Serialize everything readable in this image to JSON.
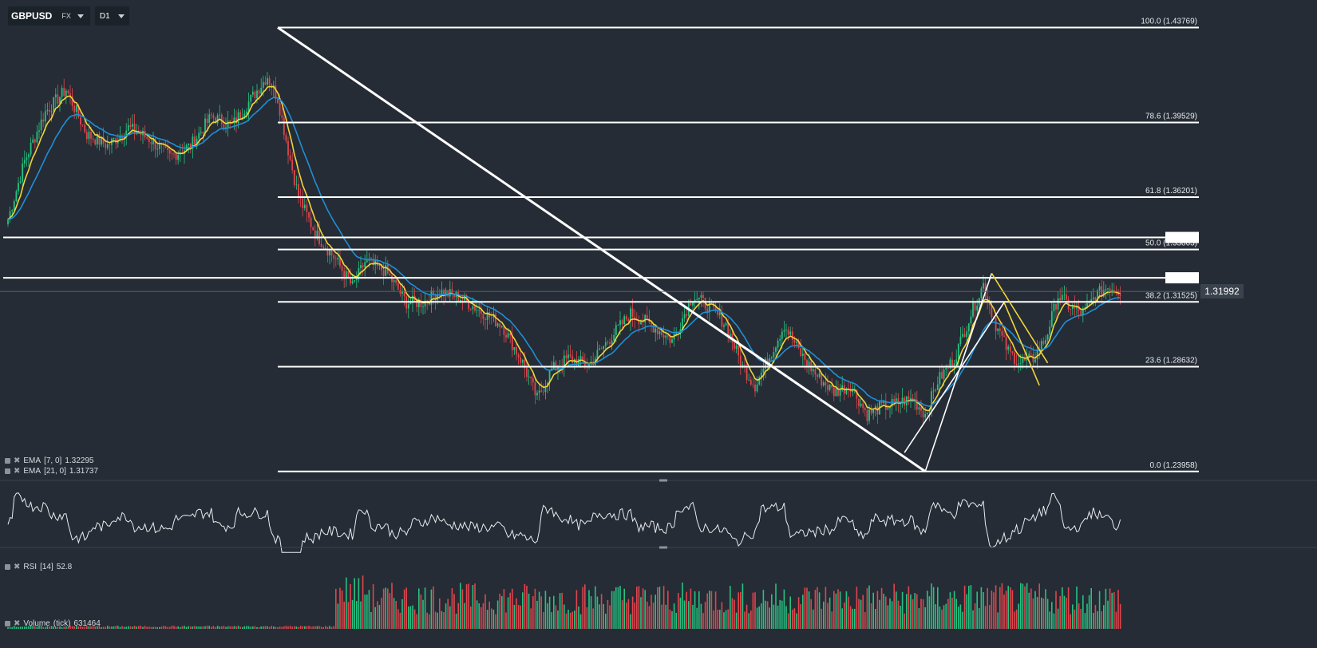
{
  "toolbar": {
    "symbol": "GBPUSD",
    "market": "FX",
    "timeframe": "D1"
  },
  "current_price": "1.31992",
  "indicators": {
    "ema7": {
      "label": "EMA",
      "params": "[7, 0]",
      "value": "1.32295",
      "color": "#f0d43a"
    },
    "ema21": {
      "label": "EMA",
      "params": "[21, 0]",
      "value": "1.31737",
      "color": "#1f8fd6"
    },
    "rsi": {
      "label": "RSI",
      "params": "[14]",
      "value": "52.8"
    },
    "volume": {
      "label": "Volume",
      "params": "(tick)",
      "value": "631464"
    }
  },
  "colors": {
    "background": "#252c35",
    "bull": "#26c281",
    "bear": "#e0454d",
    "lines": "#ffffff"
  },
  "chart_data": [
    {
      "type": "candlestick",
      "title": "GBPUSD",
      "ylim": [
        1.237,
        1.44
      ],
      "fib_levels": [
        {
          "label": "100.0 (1.43769)",
          "price": 1.43769
        },
        {
          "label": "78.6 (1.39529)",
          "price": 1.39529
        },
        {
          "label": "61.8 (1.36201)",
          "price": 1.36201
        },
        {
          "label": "50.0 (1.33863)",
          "price": 1.33863
        },
        {
          "label": "38.2 (1.31525)",
          "price": 1.31525
        },
        {
          "label": "23.6 (1.28632)",
          "price": 1.28632
        },
        {
          "label": "0.0 (1.23958)",
          "price": 1.23958
        }
      ],
      "horizontal_lines": [
        1.344,
        1.326
      ],
      "close_path": [
        [
          0,
          1.352
        ],
        [
          8,
          1.378
        ],
        [
          18,
          1.4
        ],
        [
          28,
          1.41
        ],
        [
          38,
          1.39
        ],
        [
          48,
          1.385
        ],
        [
          58,
          1.393
        ],
        [
          68,
          1.388
        ],
        [
          78,
          1.38
        ],
        [
          88,
          1.385
        ],
        [
          98,
          1.398
        ],
        [
          108,
          1.394
        ],
        [
          118,
          1.407
        ],
        [
          125,
          1.416
        ],
        [
          130,
          1.406
        ],
        [
          135,
          1.383
        ],
        [
          140,
          1.362
        ],
        [
          148,
          1.346
        ],
        [
          158,
          1.334
        ],
        [
          166,
          1.322
        ],
        [
          172,
          1.333
        ],
        [
          182,
          1.329
        ],
        [
          192,
          1.315
        ],
        [
          200,
          1.315
        ],
        [
          208,
          1.32
        ],
        [
          218,
          1.317
        ],
        [
          228,
          1.311
        ],
        [
          238,
          1.305
        ],
        [
          248,
          1.288
        ],
        [
          255,
          1.272
        ],
        [
          262,
          1.285
        ],
        [
          270,
          1.29
        ],
        [
          280,
          1.287
        ],
        [
          290,
          1.299
        ],
        [
          300,
          1.31
        ],
        [
          310,
          1.305
        ],
        [
          320,
          1.298
        ],
        [
          330,
          1.318
        ],
        [
          338,
          1.313
        ],
        [
          346,
          1.305
        ],
        [
          354,
          1.286
        ],
        [
          360,
          1.278
        ],
        [
          366,
          1.289
        ],
        [
          374,
          1.305
        ],
        [
          382,
          1.292
        ],
        [
          390,
          1.282
        ],
        [
          398,
          1.275
        ],
        [
          406,
          1.278
        ],
        [
          414,
          1.265
        ],
        [
          420,
          1.268
        ],
        [
          428,
          1.27
        ],
        [
          436,
          1.272
        ],
        [
          442,
          1.265
        ],
        [
          448,
          1.28
        ],
        [
          456,
          1.29
        ],
        [
          464,
          1.31
        ],
        [
          470,
          1.323
        ],
        [
          476,
          1.305
        ],
        [
          482,
          1.293
        ],
        [
          488,
          1.288
        ],
        [
          494,
          1.29
        ],
        [
          500,
          1.299
        ],
        [
          506,
          1.318
        ],
        [
          512,
          1.313
        ],
        [
          518,
          1.31
        ],
        [
          524,
          1.318
        ],
        [
          530,
          1.322
        ],
        [
          536,
          1.32
        ]
      ],
      "drawn_lines": [
        {
          "name": "downtrend-line",
          "from": [
            130,
            1.43769
          ],
          "to": [
            442,
            1.23958
          ],
          "color": "#ffffff"
        },
        {
          "name": "channel-upper",
          "from": [
            442,
            1.23958
          ],
          "to": [
            474,
            1.328
          ],
          "color": "#ffffff"
        },
        {
          "name": "channel-lower",
          "from": [
            432,
            1.248
          ],
          "to": [
            480,
            1.315
          ],
          "color": "#ffffff"
        },
        {
          "name": "flag-upper",
          "from": [
            474,
            1.328
          ],
          "to": [
            501,
            1.288
          ],
          "color": "#f0d43a"
        },
        {
          "name": "flag-lower",
          "from": [
            480,
            1.315
          ],
          "to": [
            497,
            1.278
          ],
          "color": "#f0d43a"
        }
      ]
    },
    {
      "type": "line",
      "title": "RSI [14]",
      "ylim": [
        20,
        80
      ],
      "last": 52.8
    },
    {
      "type": "bar",
      "title": "Volume (tick)",
      "last": 631464
    }
  ]
}
